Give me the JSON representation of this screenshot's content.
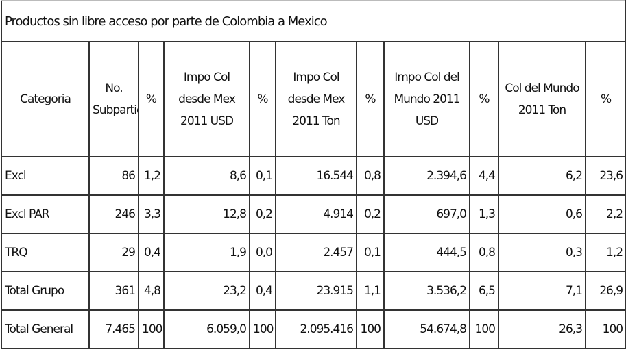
{
  "table": {
    "title": "Productos sin libre acceso por parte de Colombia a Mexico",
    "header": [
      "Categoria",
      "No. Subpartidas",
      "%",
      "Impo Col desde Mex 2011 USD",
      "%",
      "Impo Col desde Mex 2011 Ton",
      "%",
      "Impo Col del Mundo 2011 USD",
      "%",
      "Col del Mundo 2011 Ton",
      "%"
    ],
    "rows": [
      [
        "Excl",
        "86",
        "1,2",
        "8,6",
        "0,1",
        "16.544",
        "0,8",
        "2.394,6",
        "4,4",
        "6,2",
        "23,6"
      ],
      [
        "Excl PAR",
        "246",
        "3,3",
        "12,8",
        "0,2",
        "4.914",
        "0,2",
        "697,0",
        "1,3",
        "0,6",
        "2,2"
      ],
      [
        "TRQ",
        "29",
        "0,4",
        "1,9",
        "0,0",
        "2.457",
        "0,1",
        "444,5",
        "0,8",
        "0,3",
        "1,2"
      ],
      [
        "Total Grupo",
        "361",
        "4,8",
        "23,2",
        "0,4",
        "23.915",
        "1,1",
        "3.536,2",
        "6,5",
        "7,1",
        "26,9"
      ],
      [
        "Total General",
        "7.465",
        "100",
        "6.059,0",
        "100",
        "2.095.416",
        "100",
        "54.674,8",
        "100",
        "26,3",
        "100"
      ]
    ]
  }
}
